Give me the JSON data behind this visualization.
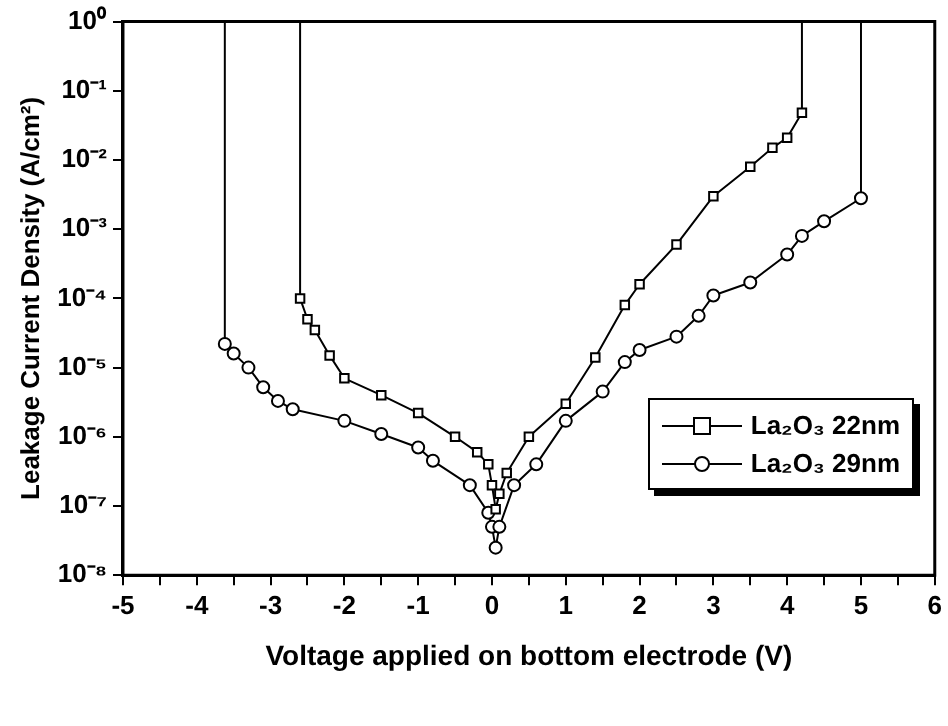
{
  "chart_data": {
    "type": "line",
    "xlabel": "Voltage applied on bottom electrode (V)",
    "ylabel": "Leakage Current Density (A/cm²)",
    "log": "y",
    "xlim": [
      -5,
      6
    ],
    "ylim": [
      1e-08,
      1
    ],
    "xticks": [
      -5,
      {
        "value": -4.5,
        "label": null
      },
      -4,
      {
        "value": -3.5,
        "label": null
      },
      -3,
      {
        "value": -2.5,
        "label": null
      },
      -2,
      {
        "value": -1.5,
        "label": null
      },
      -1,
      {
        "value": -0.5,
        "label": null
      },
      0,
      {
        "value": 0.5,
        "label": null
      },
      1,
      {
        "value": 1.5,
        "label": null
      },
      2,
      {
        "value": 2.5,
        "label": null
      },
      3,
      {
        "value": 3.5,
        "label": null
      },
      4,
      {
        "value": 4.5,
        "label": null
      },
      5,
      {
        "value": 5.5,
        "label": null
      },
      6
    ],
    "yticks": [
      {
        "value": 1e-08,
        "label": "10⁻⁸"
      },
      {
        "value": 1e-07,
        "label": "10⁻⁷"
      },
      {
        "value": 1e-06,
        "label": "10⁻⁶"
      },
      {
        "value": 1e-05,
        "label": "10⁻⁵"
      },
      {
        "value": 0.0001,
        "label": "10⁻⁴"
      },
      {
        "value": 0.001,
        "label": "10⁻³"
      },
      {
        "value": 0.01,
        "label": "10⁻²"
      },
      {
        "value": 0.1,
        "label": "10⁻¹"
      },
      {
        "value": 1,
        "label": "10⁰"
      }
    ],
    "grid": false,
    "legend": "bottom right",
    "line_style": "solid",
    "series": [
      {
        "name": "La₂O₃ 22nm",
        "color": "#000000",
        "marker": "square",
        "x": [
          -2.6,
          -2.6,
          -2.5,
          -2.4,
          -2.2,
          -2.0,
          -1.5,
          -1.0,
          -0.5,
          -0.2,
          -0.05,
          0,
          0.05,
          0.1,
          0.2,
          0.5,
          1.0,
          1.4,
          1.8,
          2.0,
          2.5,
          3.0,
          3.5,
          3.8,
          4.0,
          4.2,
          4.2
        ],
        "values": [
          1,
          0.0001,
          5e-05,
          3.5e-05,
          1.5e-05,
          7e-06,
          4e-06,
          2.2e-06,
          1e-06,
          6e-07,
          4e-07,
          2e-07,
          9e-08,
          1.5e-07,
          3e-07,
          1e-06,
          3e-06,
          1.4e-05,
          8e-05,
          0.00016,
          0.0006,
          0.003,
          0.008,
          0.015,
          0.021,
          0.048,
          1
        ]
      },
      {
        "name": "La₂O₃ 29nm",
        "color": "#000000",
        "marker": "circle",
        "x": [
          -3.62,
          -3.62,
          -3.5,
          -3.3,
          -3.1,
          -2.9,
          -2.7,
          -2.0,
          -1.5,
          -1.0,
          -0.8,
          -0.3,
          -0.05,
          0,
          0.05,
          0.1,
          0.3,
          0.6,
          1.0,
          1.5,
          1.8,
          2.0,
          2.5,
          2.8,
          3.0,
          3.5,
          4.0,
          4.2,
          4.5,
          5.0,
          5.0
        ],
        "values": [
          1,
          2.2e-05,
          1.6e-05,
          1e-05,
          5.2e-06,
          3.3e-06,
          2.5e-06,
          1.7e-06,
          1.1e-06,
          7e-07,
          4.5e-07,
          2e-07,
          8e-08,
          5e-08,
          2.5e-08,
          5e-08,
          2e-07,
          4e-07,
          1.7e-06,
          4.5e-06,
          1.2e-05,
          1.8e-05,
          2.8e-05,
          5.6e-05,
          0.00011,
          0.00017,
          0.00043,
          0.0008,
          0.0013,
          0.0028,
          1
        ]
      }
    ]
  }
}
